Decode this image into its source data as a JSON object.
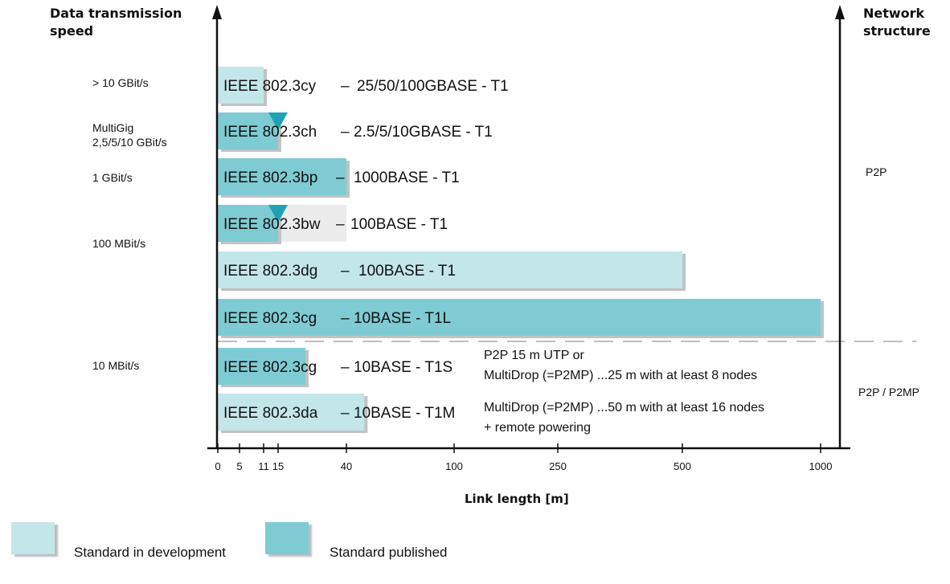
{
  "header": {
    "left_title": "Data transmission speed",
    "right_title": "Network structure"
  },
  "speed_labels": [
    {
      "text": "> 10 GBit/s"
    },
    {
      "text": "MultiGig\n2,5/5/10 GBit/s"
    },
    {
      "text": "1 GBit/s"
    },
    {
      "text": "100 MBit/s"
    },
    {
      "text": "10 MBit/s"
    }
  ],
  "structure_labels": [
    "P2P",
    "P2P / P2MP"
  ],
  "notes": [
    "P2P 15 m UTP or\nMultiDrop (=P2MP) ...25 m with at least 8 nodes",
    "MultiDrop (=P2MP) ...50 m with at least 16 nodes\n+ remote powering"
  ],
  "legend": [
    {
      "label": "Standard in development",
      "color": "#c3e6e9"
    },
    {
      "label": "Standard published",
      "color": "#7fcbd3"
    }
  ],
  "colors": {
    "development": "#c3e6e9",
    "published": "#7fcbd3",
    "marker": "#1fa3b4",
    "gray": "#ececec"
  },
  "chart_data": {
    "type": "bar",
    "xlabel": "Link length [m]",
    "x_ticks": [
      "0",
      "5",
      "11",
      "15",
      "40",
      "100",
      "250",
      "500",
      "1000"
    ],
    "rows": [
      {
        "standard": "IEEE 802.3cy",
        "phy": "25/50/100GBASE - T1",
        "length_m": 11,
        "status": "development"
      },
      {
        "standard": "IEEE 802.3ch",
        "phy": "2.5/5/10GBASE - T1",
        "length_m": 15,
        "status": "published",
        "marker": true
      },
      {
        "standard": "IEEE 802.3bp",
        "phy": "1000BASE - T1",
        "length_m": 40,
        "status": "published"
      },
      {
        "standard": "IEEE 802.3bw",
        "phy": "100BASE - T1",
        "length_m": 15,
        "extended_m": 40,
        "status": "published",
        "marker": true
      },
      {
        "standard": "IEEE 802.3dg",
        "phy": "100BASE - T1",
        "length_m": 500,
        "status": "development"
      },
      {
        "standard": "IEEE 802.3cg",
        "phy": "10BASE - T1L",
        "length_m": 1000,
        "status": "published"
      },
      {
        "standard": "IEEE 802.3cg",
        "phy": "10BASE - T1S",
        "length_m": 25,
        "status": "published"
      },
      {
        "standard": "IEEE 802.3da",
        "phy": "10BASE - T1M",
        "length_m": 50,
        "status": "development"
      }
    ]
  }
}
